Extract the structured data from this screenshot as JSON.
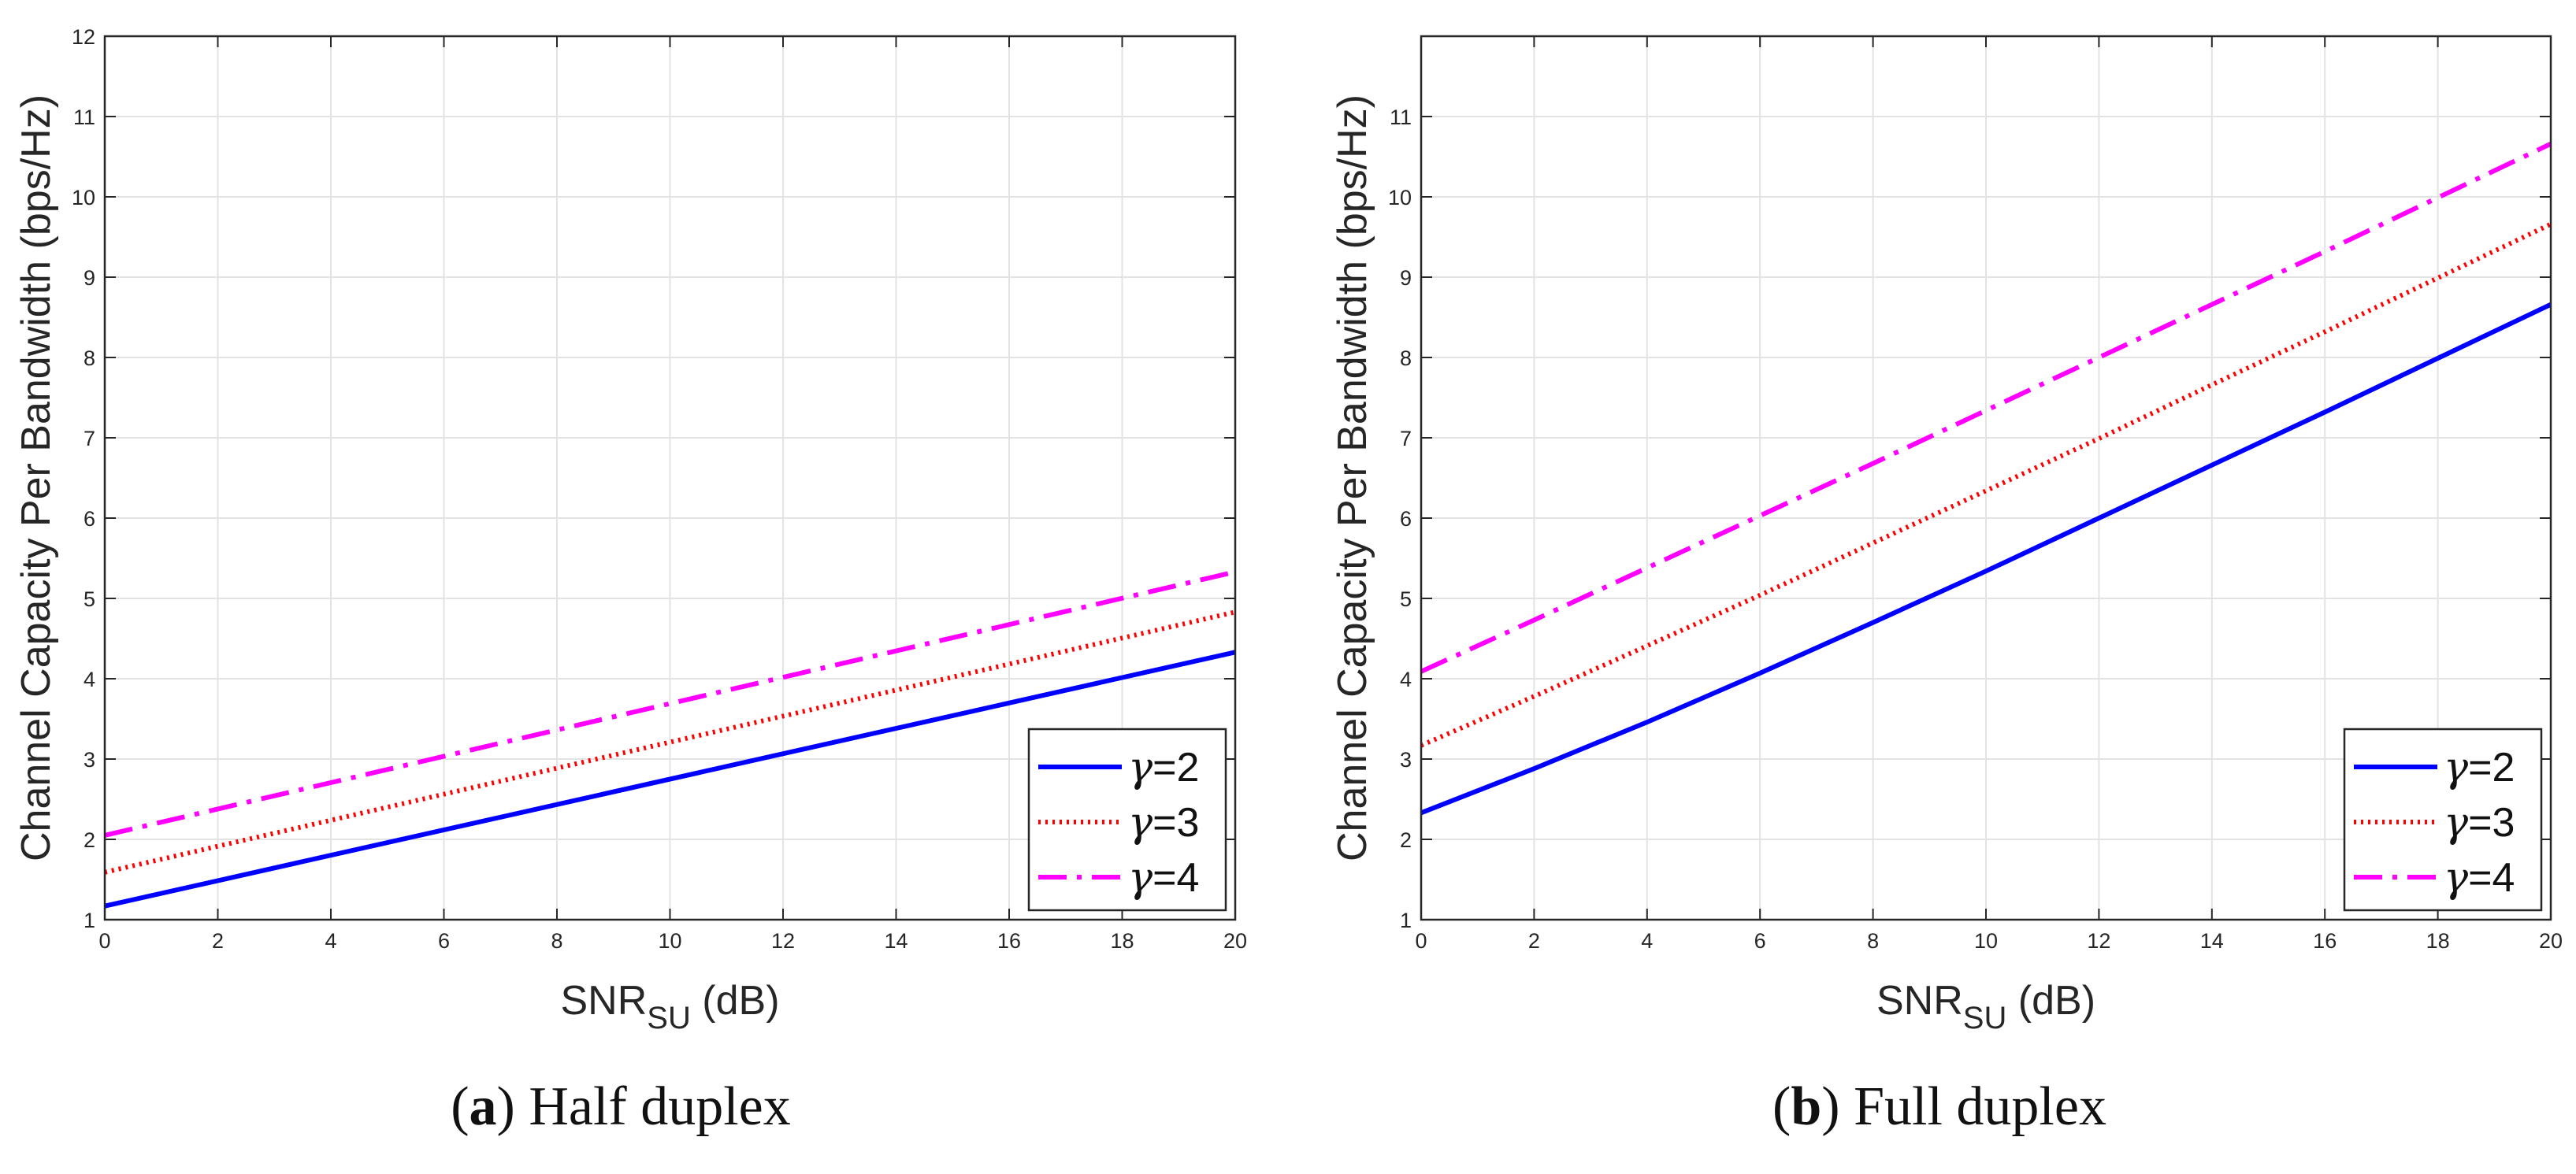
{
  "chart_data": [
    {
      "type": "line",
      "caption_letter": "a",
      "caption_text": "Half duplex",
      "xlabel_main": "SNR",
      "xlabel_sub": "SU",
      "xlabel_unit": "(dB)",
      "ylabel": "Channel Capacity Per Bandwidth (bps/Hz)",
      "xlim": [
        0,
        20
      ],
      "ylim": [
        1,
        12
      ],
      "xticks": [
        0,
        2,
        4,
        6,
        8,
        10,
        12,
        14,
        16,
        18,
        20
      ],
      "yticks": [
        1,
        2,
        3,
        4,
        5,
        6,
        7,
        8,
        9,
        10,
        11,
        12
      ],
      "grid": true,
      "legend_position": "bottom-right",
      "x": [
        0,
        20
      ],
      "series": [
        {
          "name": "γ=2",
          "symbol": "γ",
          "value_text": "=2",
          "color": "#0000ff",
          "style": "solid",
          "values": [
            1.17,
            4.33
          ]
        },
        {
          "name": "γ=3",
          "symbol": "γ",
          "value_text": "=3",
          "color": "#ff0000",
          "style": "dotted",
          "values": [
            1.59,
            4.83
          ]
        },
        {
          "name": "γ=4",
          "symbol": "γ",
          "value_text": "=4",
          "color": "#ff00ff",
          "style": "dashdot",
          "values": [
            2.05,
            5.33
          ]
        }
      ]
    },
    {
      "type": "line",
      "caption_letter": "b",
      "caption_text": "Full duplex",
      "xlabel_main": "SNR",
      "xlabel_sub": "SU",
      "xlabel_unit": "(dB)",
      "ylabel": "Channel Capacity Per Bandwidth (bps/Hz)",
      "xlim": [
        0,
        20
      ],
      "ylim": [
        1,
        12
      ],
      "xticks": [
        0,
        2,
        4,
        6,
        8,
        10,
        12,
        14,
        16,
        18,
        20
      ],
      "yticks": [
        1,
        2,
        3,
        4,
        5,
        6,
        7,
        8,
        9,
        10,
        11
      ],
      "grid": true,
      "legend_position": "bottom-right",
      "x": [
        0,
        2,
        4,
        6,
        8,
        10,
        12,
        14,
        16,
        18,
        20
      ],
      "series": [
        {
          "name": "γ=2",
          "symbol": "γ",
          "value_text": "=2",
          "color": "#0000ff",
          "style": "solid",
          "values": [
            2.33,
            2.88,
            3.46,
            4.07,
            4.7,
            5.34,
            6.0,
            6.66,
            7.32,
            7.99,
            8.66
          ]
        },
        {
          "name": "γ=3",
          "symbol": "γ",
          "value_text": "=3",
          "color": "#ff0000",
          "style": "dotted",
          "values": [
            3.17,
            3.78,
            4.41,
            5.04,
            5.69,
            6.34,
            6.99,
            7.66,
            8.32,
            8.99,
            9.66
          ]
        },
        {
          "name": "γ=4",
          "symbol": "γ",
          "value_text": "=4",
          "color": "#ff00ff",
          "style": "dashdot",
          "values": [
            4.09,
            4.73,
            5.38,
            6.03,
            6.68,
            7.34,
            8.0,
            8.66,
            9.32,
            9.99,
            10.66
          ]
        }
      ]
    }
  ]
}
